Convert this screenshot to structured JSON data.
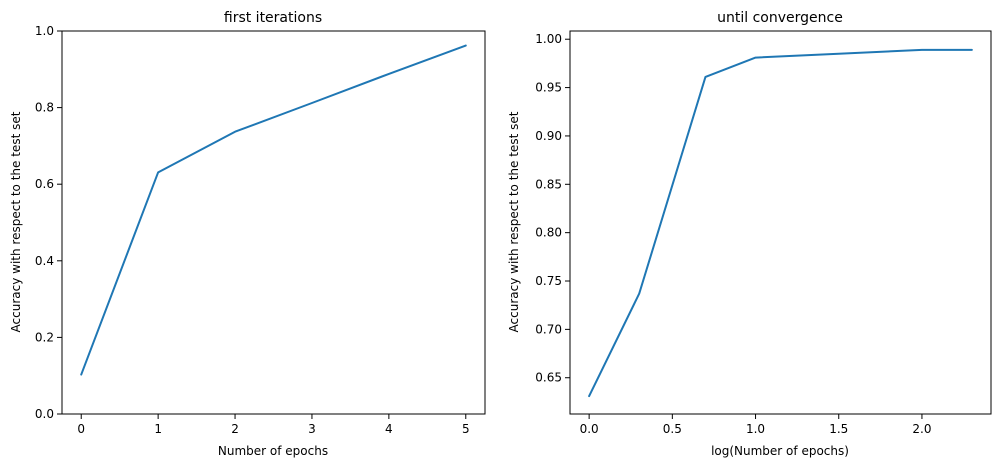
{
  "chart_data": [
    {
      "type": "line",
      "title": "first iterations",
      "xlabel": "Number of epochs",
      "ylabel": "Accuracy with respect to the test set",
      "xlim": [
        -0.25,
        5.25
      ],
      "ylim": [
        0.0,
        1.0
      ],
      "xticks": [
        0,
        1,
        2,
        3,
        4,
        5
      ],
      "xtick_labels": [
        "0",
        "1",
        "2",
        "3",
        "4",
        "5"
      ],
      "yticks": [
        0.0,
        0.2,
        0.4,
        0.6,
        0.8,
        1.0
      ],
      "ytick_labels": [
        "0.0",
        "0.2",
        "0.4",
        "0.6",
        "0.8",
        "1.0"
      ],
      "grid": false,
      "color": "#1f77b4",
      "x": [
        0,
        1,
        2,
        3,
        4,
        5
      ],
      "y": [
        0.103,
        0.631,
        0.737,
        0.812,
        0.888,
        0.962
      ]
    },
    {
      "type": "line",
      "title": "until convergence",
      "xlabel": "log(Number of epochs)",
      "ylabel": "Accuracy with respect to the test set",
      "xlim": [
        -0.115,
        2.415
      ],
      "ylim": [
        0.6125,
        1.0085
      ],
      "xticks": [
        0.0,
        0.5,
        1.0,
        1.5,
        2.0
      ],
      "xtick_labels": [
        "0.0",
        "0.5",
        "1.0",
        "1.5",
        "2.0"
      ],
      "yticks": [
        0.65,
        0.7,
        0.75,
        0.8,
        0.85,
        0.9,
        0.95,
        1.0
      ],
      "ytick_labels": [
        "0.65",
        "0.70",
        "0.75",
        "0.80",
        "0.85",
        "0.90",
        "0.95",
        "1.00"
      ],
      "grid": false,
      "color": "#1f77b4",
      "x": [
        0.0,
        0.301,
        0.699,
        1.0,
        1.5,
        2.0,
        2.3
      ],
      "y": [
        0.631,
        0.737,
        0.961,
        0.981,
        0.985,
        0.989,
        0.989
      ]
    }
  ]
}
